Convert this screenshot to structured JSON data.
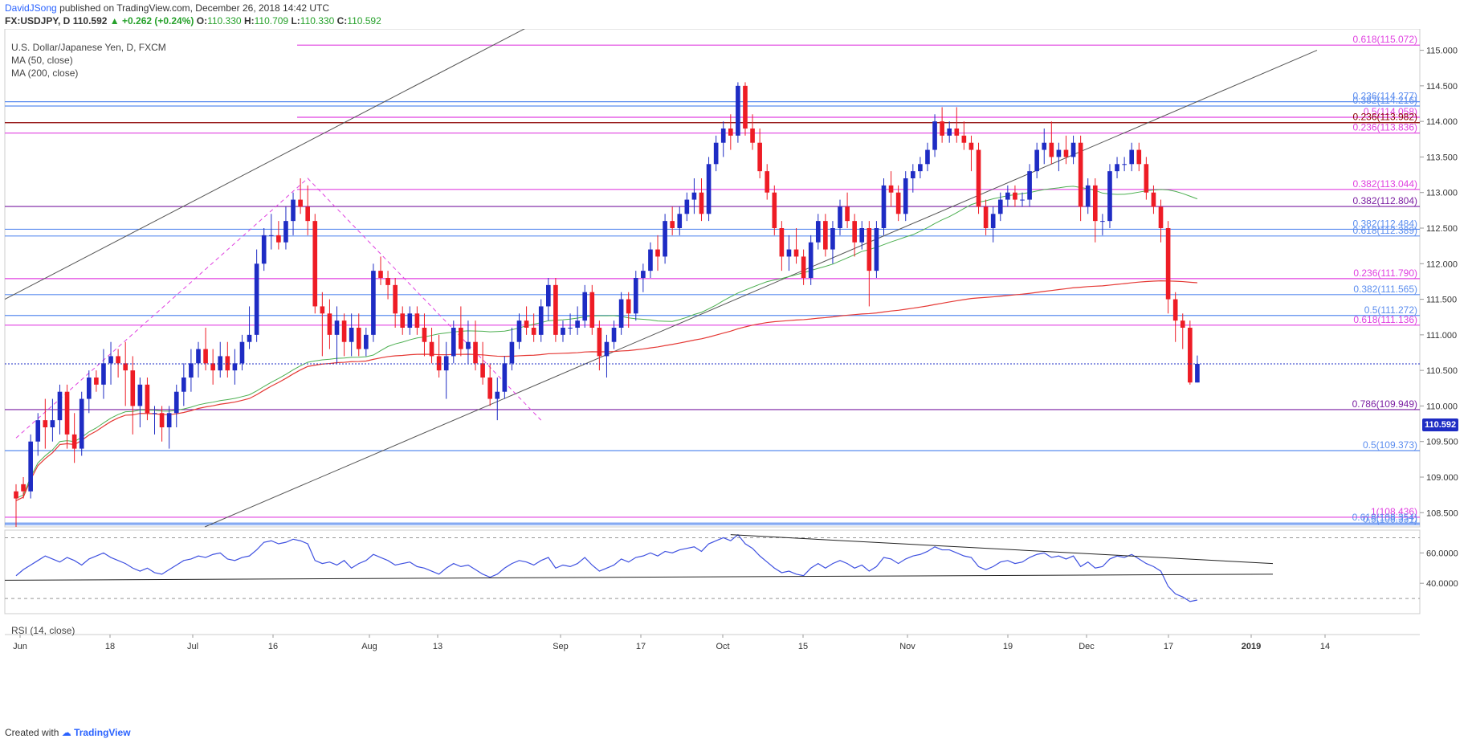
{
  "header": {
    "author": "DavidJSong",
    "published_text": "published on TradingView.com, December 26, 2018 14:42 UTC",
    "symbol": "FX:USDJPY, D",
    "last": "110.592",
    "change": "+0.262 (+0.24%)",
    "open_label": "O:",
    "open": "110.330",
    "high_label": "H:",
    "high": "110.709",
    "low_label": "L:",
    "low": "110.330",
    "close_label": "C:",
    "close": "110.592"
  },
  "legend": {
    "title": "U.S. Dollar/Japanese Yen, D, FXCM",
    "ma50": "MA (50, close)",
    "ma200": "MA (200, close)",
    "rsi": "RSI (14, close)"
  },
  "footer": {
    "created_with": "Created with",
    "brand": "TradingView"
  },
  "colors": {
    "up": "#1e2cc4",
    "down": "#ee1c25",
    "ma50": "#4caf50",
    "ma200": "#e53935",
    "fib_pink": "#e040e0",
    "fib_blue": "#5b8def",
    "line_dark_blue": "#1a237e",
    "line_dark_red": "#8b0000",
    "trend": "#555555",
    "rsi": "#3f51e0"
  },
  "chart_data": {
    "type": "candlestick",
    "title": "U.S. Dollar/Japanese Yen, D, FXCM",
    "ylim": [
      108.3,
      115.3
    ],
    "y_ticks": [
      108.5,
      109.0,
      109.5,
      110.0,
      110.5,
      111.0,
      111.5,
      112.0,
      112.5,
      113.0,
      113.5,
      114.0,
      114.5,
      115.0
    ],
    "x_tick_labels": [
      "Jun",
      "18",
      "Jul",
      "16",
      "Aug",
      "13",
      "Sep",
      "17",
      "Oct",
      "15",
      "Nov",
      "19",
      "Dec",
      "17",
      "2019",
      "14"
    ],
    "last_price": "110.592",
    "fib_levels": [
      {
        "label": "0.618(115.072)",
        "price": 115.072,
        "color": "pink"
      },
      {
        "label": "0.236(114.277)",
        "price": 114.277,
        "color": "blue"
      },
      {
        "label": "0.382(114.216)",
        "price": 114.216,
        "color": "blue"
      },
      {
        "label": "0.5(114.058)",
        "price": 114.058,
        "color": "pink"
      },
      {
        "label": "0.236(113.982)",
        "price": 113.982,
        "color": "darkred"
      },
      {
        "label": "0.236(113.836)",
        "price": 113.836,
        "color": "pink"
      },
      {
        "label": "0.382(113.044)",
        "price": 113.044,
        "color": "pink"
      },
      {
        "label": "0.382(112.804)",
        "price": 112.804,
        "color": "purple"
      },
      {
        "label": "0.382(112.484)",
        "price": 112.484,
        "color": "blue"
      },
      {
        "label": "0.618(112.389)",
        "price": 112.389,
        "color": "blue"
      },
      {
        "label": "0.236(111.790)",
        "price": 111.79,
        "color": "pink"
      },
      {
        "label": "0.382(111.565)",
        "price": 111.565,
        "color": "blue"
      },
      {
        "label": "0.5(111.272)",
        "price": 111.272,
        "color": "blue"
      },
      {
        "label": "0.618(111.136)",
        "price": 111.136,
        "color": "pink"
      },
      {
        "label": "0.786(109.949)",
        "price": 109.949,
        "color": "purple"
      },
      {
        "label": "0.5(109.373)",
        "price": 109.373,
        "color": "blue"
      },
      {
        "label": "1(108.436)",
        "price": 108.436,
        "color": "pink"
      },
      {
        "label": "0.618(108.354)",
        "price": 108.354,
        "color": "blue"
      },
      {
        "label": "0.5(108.331)",
        "price": 108.331,
        "color": "blue"
      }
    ],
    "candles": [
      [
        108.8,
        108.9,
        108.3,
        108.7
      ],
      [
        108.9,
        109.0,
        108.7,
        108.8
      ],
      [
        108.8,
        109.6,
        108.7,
        109.5
      ],
      [
        109.5,
        109.9,
        109.3,
        109.8
      ],
      [
        109.8,
        110.1,
        109.4,
        109.7
      ],
      [
        109.7,
        110.1,
        109.5,
        109.8
      ],
      [
        109.8,
        110.3,
        109.6,
        110.2
      ],
      [
        110.2,
        110.3,
        109.4,
        109.6
      ],
      [
        109.6,
        109.9,
        109.2,
        109.4
      ],
      [
        109.4,
        110.2,
        109.3,
        110.1
      ],
      [
        110.1,
        110.5,
        109.9,
        110.4
      ],
      [
        110.4,
        110.5,
        110.2,
        110.3
      ],
      [
        110.3,
        110.8,
        110.1,
        110.6
      ],
      [
        110.6,
        110.9,
        110.3,
        110.7
      ],
      [
        110.7,
        110.8,
        110.4,
        110.6
      ],
      [
        110.6,
        110.9,
        110.0,
        110.5
      ],
      [
        110.5,
        110.7,
        109.6,
        110.0
      ],
      [
        110.0,
        110.4,
        109.7,
        110.3
      ],
      [
        110.3,
        110.4,
        109.8,
        109.9
      ],
      [
        109.9,
        110.0,
        109.6,
        109.9
      ],
      [
        109.9,
        110.0,
        109.5,
        109.7
      ],
      [
        109.7,
        110.0,
        109.4,
        109.9
      ],
      [
        109.9,
        110.3,
        109.7,
        110.2
      ],
      [
        110.2,
        110.6,
        110.0,
        110.4
      ],
      [
        110.4,
        110.8,
        110.2,
        110.6
      ],
      [
        110.6,
        110.9,
        110.4,
        110.8
      ],
      [
        110.8,
        111.1,
        110.5,
        110.6
      ],
      [
        110.6,
        110.8,
        110.3,
        110.5
      ],
      [
        110.5,
        110.9,
        110.4,
        110.7
      ],
      [
        110.7,
        110.9,
        110.4,
        110.5
      ],
      [
        110.5,
        110.8,
        110.3,
        110.6
      ],
      [
        110.6,
        111.0,
        110.5,
        110.9
      ],
      [
        110.9,
        111.4,
        110.8,
        111.0
      ],
      [
        111.0,
        112.2,
        110.9,
        112.0
      ],
      [
        112.0,
        112.5,
        111.9,
        112.4
      ],
      [
        112.4,
        112.7,
        112.2,
        112.4
      ],
      [
        112.4,
        112.6,
        112.2,
        112.3
      ],
      [
        112.3,
        112.8,
        112.2,
        112.6
      ],
      [
        112.6,
        113.0,
        112.4,
        112.9
      ],
      [
        112.9,
        113.2,
        112.7,
        112.8
      ],
      [
        112.8,
        113.1,
        112.4,
        112.6
      ],
      [
        112.6,
        112.7,
        111.3,
        111.4
      ],
      [
        111.4,
        111.6,
        110.7,
        111.3
      ],
      [
        111.3,
        111.5,
        110.8,
        111.0
      ],
      [
        111.0,
        111.4,
        110.6,
        111.2
      ],
      [
        111.2,
        111.3,
        110.7,
        110.9
      ],
      [
        110.9,
        111.3,
        110.7,
        111.1
      ],
      [
        111.1,
        111.3,
        110.7,
        110.8
      ],
      [
        110.8,
        111.1,
        110.7,
        111.0
      ],
      [
        111.0,
        112.0,
        110.9,
        111.9
      ],
      [
        111.9,
        112.1,
        111.7,
        111.8
      ],
      [
        111.8,
        111.9,
        111.5,
        111.7
      ],
      [
        111.7,
        111.8,
        111.1,
        111.3
      ],
      [
        111.3,
        111.4,
        111.0,
        111.1
      ],
      [
        111.1,
        111.4,
        111.0,
        111.3
      ],
      [
        111.3,
        111.4,
        111.0,
        111.1
      ],
      [
        111.1,
        111.3,
        110.7,
        110.9
      ],
      [
        110.9,
        111.1,
        110.6,
        110.7
      ],
      [
        110.7,
        111.0,
        110.4,
        110.5
      ],
      [
        110.5,
        110.9,
        110.1,
        110.7
      ],
      [
        110.7,
        111.2,
        110.6,
        111.1
      ],
      [
        111.1,
        111.4,
        110.7,
        110.8
      ],
      [
        110.8,
        111.2,
        110.6,
        110.9
      ],
      [
        110.9,
        111.2,
        110.5,
        110.6
      ],
      [
        110.6,
        110.9,
        110.3,
        110.4
      ],
      [
        110.4,
        110.6,
        110.0,
        110.1
      ],
      [
        110.1,
        110.4,
        109.8,
        110.2
      ],
      [
        110.2,
        110.7,
        110.1,
        110.6
      ],
      [
        110.6,
        111.1,
        110.5,
        110.9
      ],
      [
        110.9,
        111.3,
        110.8,
        111.2
      ],
      [
        111.2,
        111.4,
        111.0,
        111.1
      ],
      [
        111.1,
        111.3,
        110.9,
        111.0
      ],
      [
        111.0,
        111.5,
        110.9,
        111.4
      ],
      [
        111.4,
        111.8,
        111.2,
        111.7
      ],
      [
        111.7,
        111.8,
        110.9,
        111.0
      ],
      [
        111.0,
        111.2,
        110.9,
        111.1
      ],
      [
        111.1,
        111.3,
        111.0,
        111.1
      ],
      [
        111.1,
        111.4,
        111.0,
        111.2
      ],
      [
        111.2,
        111.7,
        111.1,
        111.6
      ],
      [
        111.6,
        111.7,
        111.0,
        111.1
      ],
      [
        111.1,
        111.2,
        110.5,
        110.7
      ],
      [
        110.7,
        111.0,
        110.4,
        110.9
      ],
      [
        110.9,
        111.2,
        110.8,
        111.1
      ],
      [
        111.1,
        111.6,
        111.0,
        111.5
      ],
      [
        111.5,
        111.6,
        111.1,
        111.3
      ],
      [
        111.3,
        111.9,
        111.2,
        111.8
      ],
      [
        111.8,
        112.0,
        111.6,
        111.9
      ],
      [
        111.9,
        112.3,
        111.8,
        112.2
      ],
      [
        112.2,
        112.4,
        111.9,
        112.1
      ],
      [
        112.1,
        112.7,
        112.0,
        112.6
      ],
      [
        112.6,
        112.8,
        112.4,
        112.5
      ],
      [
        112.5,
        112.8,
        112.4,
        112.7
      ],
      [
        112.7,
        113.0,
        112.6,
        112.9
      ],
      [
        112.9,
        113.2,
        112.7,
        113.0
      ],
      [
        113.0,
        113.2,
        112.6,
        112.7
      ],
      [
        112.7,
        113.5,
        112.6,
        113.4
      ],
      [
        113.4,
        113.8,
        113.3,
        113.7
      ],
      [
        113.7,
        114.0,
        113.5,
        113.9
      ],
      [
        113.9,
        114.1,
        113.6,
        113.8
      ],
      [
        113.8,
        114.55,
        113.7,
        114.5
      ],
      [
        114.5,
        114.55,
        113.8,
        113.9
      ],
      [
        113.9,
        114.1,
        113.6,
        113.7
      ],
      [
        113.7,
        113.9,
        113.2,
        113.3
      ],
      [
        113.3,
        113.4,
        112.9,
        113.0
      ],
      [
        113.0,
        113.1,
        112.4,
        112.5
      ],
      [
        112.5,
        112.6,
        111.9,
        112.1
      ],
      [
        112.1,
        112.4,
        111.9,
        112.2
      ],
      [
        112.2,
        112.5,
        112.0,
        112.1
      ],
      [
        112.1,
        112.2,
        111.7,
        111.8
      ],
      [
        111.8,
        112.4,
        111.7,
        112.3
      ],
      [
        112.3,
        112.7,
        112.2,
        112.6
      ],
      [
        112.6,
        112.7,
        112.1,
        112.2
      ],
      [
        112.2,
        112.6,
        112.0,
        112.5
      ],
      [
        112.5,
        112.9,
        112.4,
        112.8
      ],
      [
        112.8,
        113.0,
        112.5,
        112.6
      ],
      [
        112.6,
        112.7,
        112.1,
        112.3
      ],
      [
        112.3,
        112.6,
        112.2,
        112.5
      ],
      [
        112.5,
        112.6,
        111.4,
        111.9
      ],
      [
        111.9,
        112.6,
        111.8,
        112.5
      ],
      [
        112.5,
        113.2,
        112.4,
        113.1
      ],
      [
        113.1,
        113.3,
        112.8,
        113.0
      ],
      [
        113.0,
        113.1,
        112.6,
        112.7
      ],
      [
        112.7,
        113.3,
        112.6,
        113.2
      ],
      [
        113.2,
        113.4,
        113.0,
        113.3
      ],
      [
        113.3,
        113.5,
        113.2,
        113.4
      ],
      [
        113.4,
        113.7,
        113.3,
        113.6
      ],
      [
        113.6,
        114.1,
        113.5,
        114.0
      ],
      [
        114.0,
        114.2,
        113.7,
        113.8
      ],
      [
        113.8,
        114.0,
        113.7,
        113.9
      ],
      [
        113.9,
        114.2,
        113.7,
        113.8
      ],
      [
        113.8,
        114.0,
        113.6,
        113.7
      ],
      [
        113.7,
        113.8,
        113.3,
        113.6
      ],
      [
        113.6,
        113.7,
        112.7,
        112.8
      ],
      [
        112.8,
        112.9,
        112.4,
        112.5
      ],
      [
        112.5,
        112.8,
        112.3,
        112.7
      ],
      [
        112.7,
        113.0,
        112.6,
        112.9
      ],
      [
        112.9,
        113.1,
        112.8,
        113.0
      ],
      [
        113.0,
        113.1,
        112.8,
        112.9
      ],
      [
        112.9,
        113.0,
        112.8,
        112.9
      ],
      [
        112.9,
        113.4,
        112.8,
        113.3
      ],
      [
        113.3,
        113.7,
        113.2,
        113.6
      ],
      [
        113.6,
        113.9,
        113.4,
        113.7
      ],
      [
        113.7,
        114.0,
        113.4,
        113.5
      ],
      [
        113.5,
        113.7,
        113.3,
        113.6
      ],
      [
        113.6,
        113.8,
        113.4,
        113.5
      ],
      [
        113.5,
        113.8,
        113.4,
        113.7
      ],
      [
        113.7,
        113.8,
        112.6,
        112.8
      ],
      [
        112.8,
        113.2,
        112.7,
        113.1
      ],
      [
        113.1,
        113.2,
        112.3,
        112.6
      ],
      [
        112.6,
        112.7,
        112.4,
        112.6
      ],
      [
        112.6,
        113.4,
        112.5,
        113.3
      ],
      [
        113.3,
        113.5,
        113.2,
        113.4
      ],
      [
        113.4,
        113.5,
        113.3,
        113.4
      ],
      [
        113.4,
        113.7,
        113.3,
        113.6
      ],
      [
        113.6,
        113.7,
        113.3,
        113.4
      ],
      [
        113.4,
        113.5,
        112.9,
        113.0
      ],
      [
        113.0,
        113.1,
        112.7,
        112.8
      ],
      [
        112.8,
        112.9,
        112.3,
        112.5
      ],
      [
        112.5,
        112.6,
        111.3,
        111.5
      ],
      [
        111.5,
        111.6,
        110.9,
        111.2
      ],
      [
        111.2,
        111.3,
        110.8,
        111.1
      ],
      [
        111.1,
        111.2,
        110.3,
        110.33
      ],
      [
        110.33,
        110.709,
        110.33,
        110.592
      ]
    ],
    "rsi": {
      "ylim": [
        20,
        75
      ],
      "ticks": [
        40,
        60
      ],
      "overbought": 70,
      "oversold": 30,
      "values": [
        45,
        49,
        52,
        55,
        58,
        56,
        54,
        57,
        55,
        52,
        56,
        58,
        60,
        57,
        55,
        53,
        50,
        48,
        50,
        47,
        46,
        49,
        52,
        55,
        56,
        58,
        57,
        59,
        60,
        56,
        55,
        57,
        58,
        62,
        67,
        68,
        66,
        67,
        69,
        68,
        66,
        55,
        53,
        54,
        52,
        55,
        50,
        53,
        55,
        59,
        57,
        55,
        52,
        53,
        54,
        51,
        50,
        48,
        46,
        50,
        53,
        51,
        52,
        49,
        46,
        44,
        46,
        50,
        53,
        55,
        54,
        52,
        55,
        57,
        50,
        52,
        51,
        53,
        57,
        52,
        48,
        50,
        52,
        56,
        54,
        57,
        58,
        60,
        58,
        61,
        60,
        62,
        63,
        64,
        61,
        66,
        68,
        70,
        68,
        72,
        66,
        63,
        58,
        54,
        50,
        47,
        48,
        46,
        45,
        50,
        53,
        50,
        53,
        55,
        53,
        50,
        52,
        48,
        51,
        57,
        56,
        53,
        56,
        58,
        59,
        61,
        64,
        62,
        62,
        60,
        58,
        57,
        51,
        49,
        51,
        54,
        55,
        53,
        54,
        57,
        59,
        60,
        57,
        58,
        56,
        58,
        51,
        54,
        50,
        51,
        56,
        58,
        57,
        59,
        56,
        53,
        51,
        48,
        38,
        33,
        31,
        28,
        29
      ]
    }
  }
}
